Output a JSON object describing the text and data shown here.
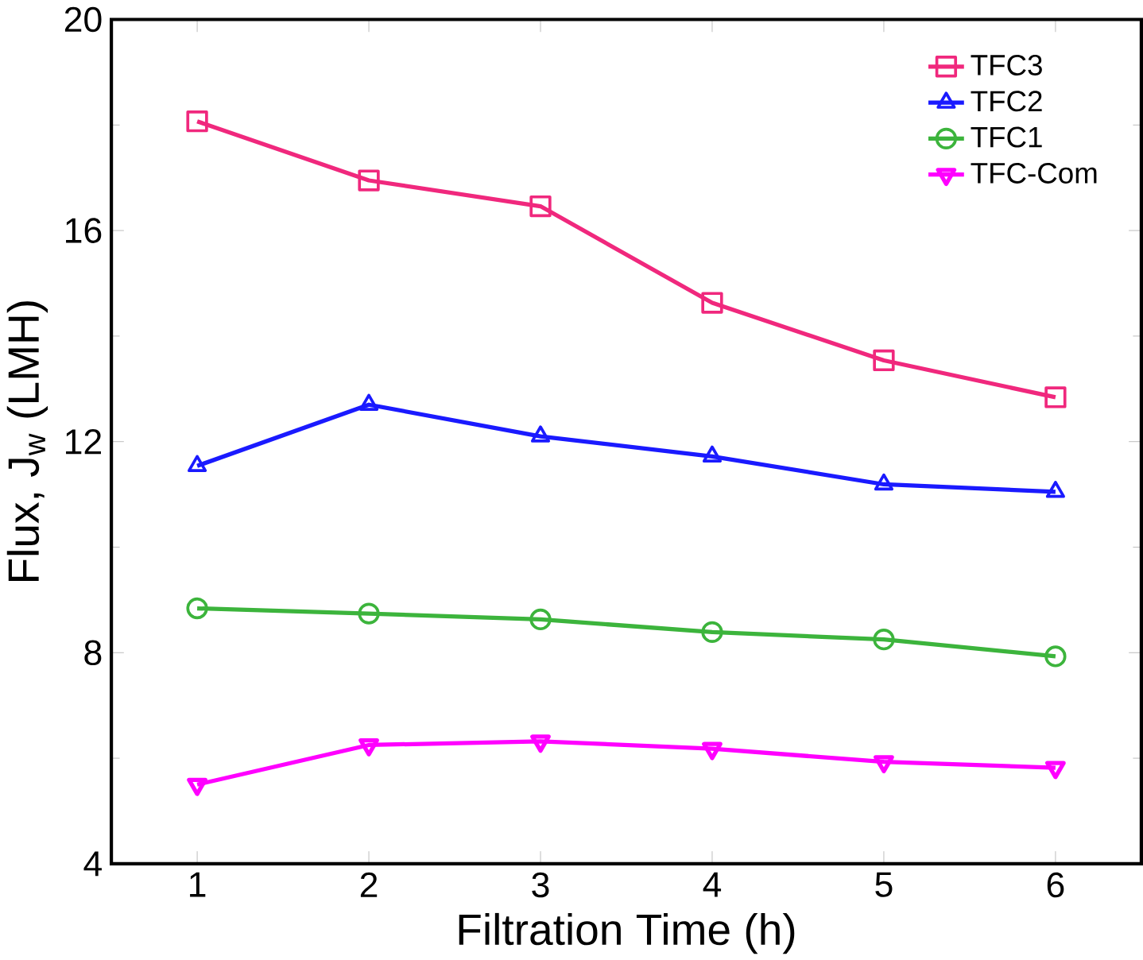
{
  "chart_data": {
    "type": "line",
    "xlabel": "Filtration Time (h)",
    "ylabel": "Flux, J$_{w}$ (LMH)",
    "x": [
      1,
      2,
      3,
      4,
      5,
      6
    ],
    "series": [
      {
        "name": "TFC3",
        "color": "#f0287d",
        "marker": "square",
        "values": [
          18.07,
          16.95,
          16.46,
          14.63,
          13.54,
          12.84
        ]
      },
      {
        "name": "TFC2",
        "color": "#1a1aff",
        "marker": "triangle",
        "values": [
          11.54,
          12.7,
          12.1,
          11.72,
          11.19,
          11.05
        ]
      },
      {
        "name": "TFC1",
        "color": "#3cb43c",
        "marker": "circle",
        "values": [
          8.84,
          8.74,
          8.63,
          8.39,
          8.25,
          7.93
        ]
      },
      {
        "name": "TFC-Com",
        "color": "#ff00ff",
        "marker": "triangle down",
        "values": [
          5.5,
          6.25,
          6.32,
          6.18,
          5.93,
          5.82
        ]
      }
    ],
    "xlim": [
      0.5,
      6.5
    ],
    "xticks": [
      1,
      2,
      3,
      4,
      5,
      6
    ],
    "ylim": [
      4,
      20
    ],
    "yticks": [
      4,
      8,
      12,
      16,
      20
    ],
    "legend": "top right",
    "grid": false,
    "line_style": "solid"
  }
}
